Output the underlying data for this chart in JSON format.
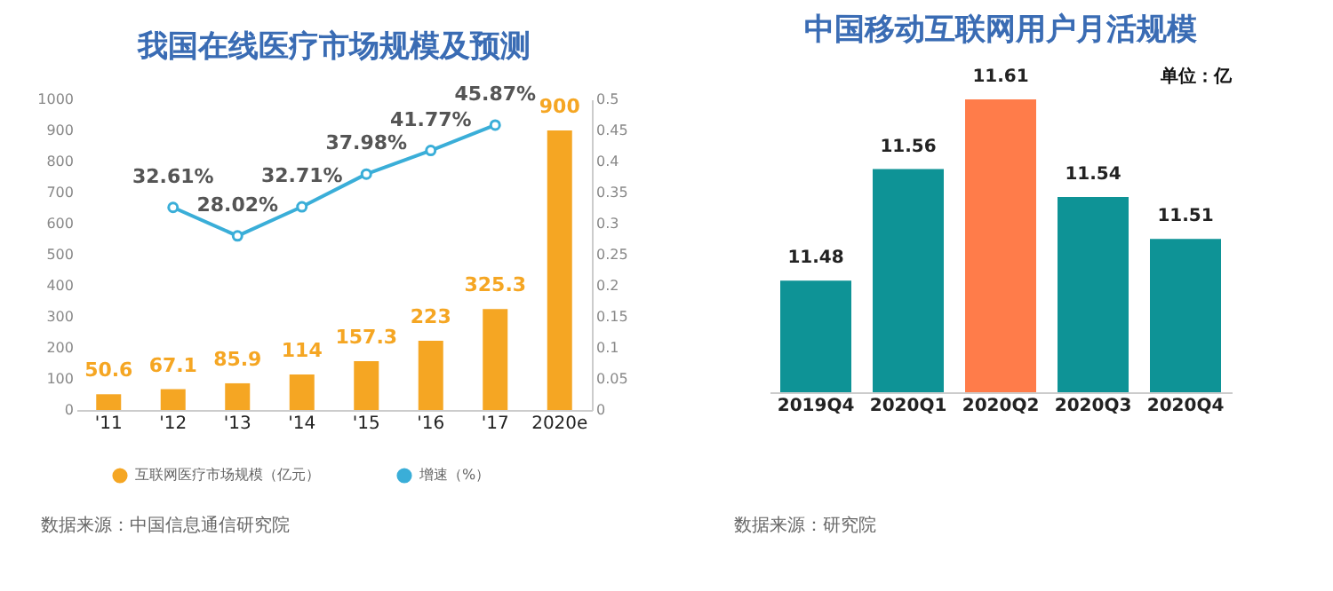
{
  "chart_data": [
    {
      "type": "bar",
      "title": "我国在线医疗市场规模及预测",
      "categories": [
        "'11",
        "'12",
        "'13",
        "'14",
        "'15",
        "'16",
        "'17",
        "2020e"
      ],
      "series": [
        {
          "name": "互联网医疗市场规模（亿元）",
          "color": "#f5a623",
          "values": [
            50.6,
            67.1,
            85.9,
            114,
            157.3,
            223,
            325.3,
            900
          ]
        },
        {
          "name": "增速（%）",
          "type": "line",
          "axis": "y2",
          "color": "#3aaed8",
          "values": [
            null,
            0.3261,
            0.2802,
            0.3271,
            0.3798,
            0.4177,
            0.4587,
            null
          ],
          "value_labels": [
            null,
            "32.61%",
            "28.02%",
            "32.71%",
            "37.98%",
            "41.77%",
            "45.87%",
            null
          ]
        }
      ],
      "data_labels": true,
      "ylim": [
        0,
        1000
      ],
      "yticks": [
        0,
        100,
        200,
        300,
        400,
        500,
        600,
        700,
        800,
        900,
        1000
      ],
      "y2lim": [
        0,
        0.5
      ],
      "y2ticks": [
        0,
        0.05,
        0.1,
        0.15,
        0.2,
        0.25,
        0.3,
        0.35,
        0.4,
        0.45,
        0.5
      ],
      "marker": "circle",
      "legend": "bottom",
      "grid": false,
      "annotations": [
        "数据来源：中国信息通信研究院"
      ]
    },
    {
      "type": "bar",
      "title": "中国移动互联网用户月活规模",
      "categories": [
        "2019Q4",
        "2020Q1",
        "2020Q2",
        "2020Q3",
        "2020Q4"
      ],
      "values": [
        11.48,
        11.56,
        11.61,
        11.54,
        11.51
      ],
      "colors": [
        "#0e9396",
        "#0e9396",
        "#ff7c4a",
        "#0e9396",
        "#0e9396"
      ],
      "data_labels": true,
      "ylim": [
        11.4,
        11.61
      ],
      "tick_labels": "x",
      "grid": false,
      "annotations": [
        "单位：亿",
        "数据来源：研究院"
      ]
    }
  ]
}
